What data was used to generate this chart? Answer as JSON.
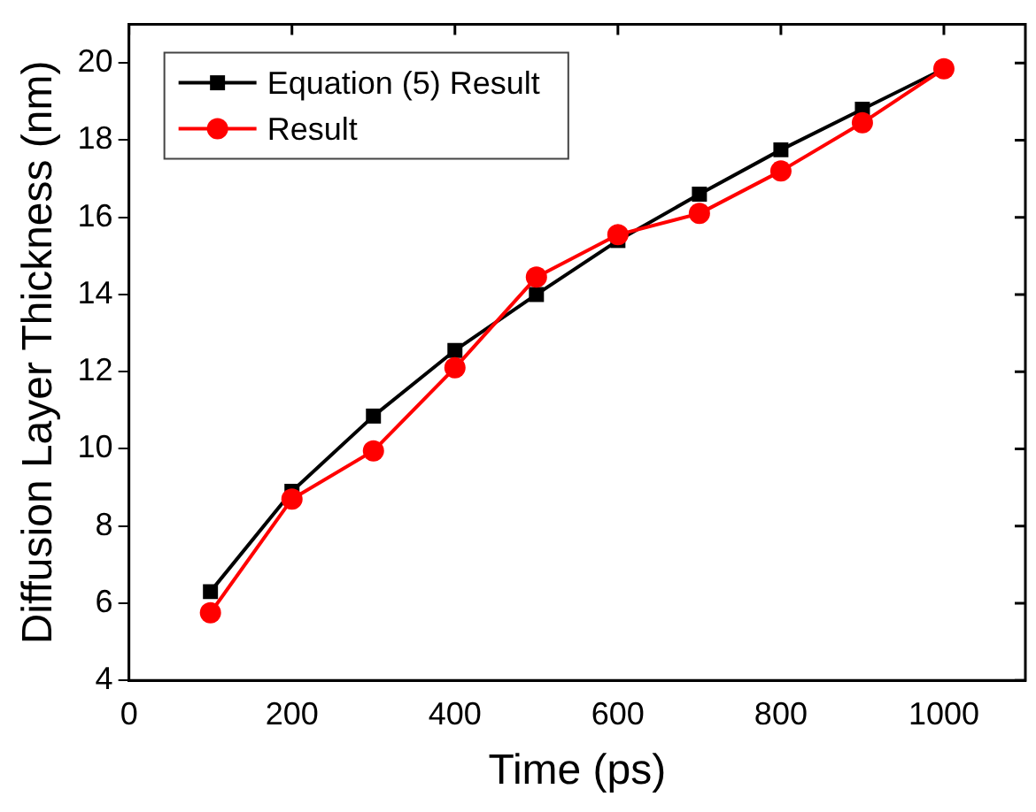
{
  "chart_data": {
    "type": "line",
    "xlabel": "Time (ps)",
    "ylabel": "Diffusion Layer Thickness (nm)",
    "x": [
      100,
      200,
      300,
      400,
      500,
      600,
      700,
      800,
      900,
      1000
    ],
    "series": [
      {
        "name": "Equation (5) Result",
        "color": "#000000",
        "marker": "square",
        "values": [
          6.3,
          8.9,
          10.85,
          12.55,
          14.0,
          15.4,
          16.6,
          17.75,
          18.8,
          19.85
        ]
      },
      {
        "name": "Result",
        "color": "#ff0000",
        "marker": "circle",
        "values": [
          5.75,
          8.7,
          9.95,
          12.1,
          14.45,
          15.55,
          16.1,
          17.2,
          18.45,
          19.85
        ]
      }
    ],
    "xlim": [
      0,
      1100
    ],
    "xticks": [
      0,
      200,
      400,
      600,
      800,
      1000
    ],
    "ylim": [
      4,
      21
    ],
    "yticks": [
      4,
      6,
      8,
      10,
      12,
      14,
      16,
      18,
      20
    ],
    "grid": false,
    "legend": "top left"
  }
}
